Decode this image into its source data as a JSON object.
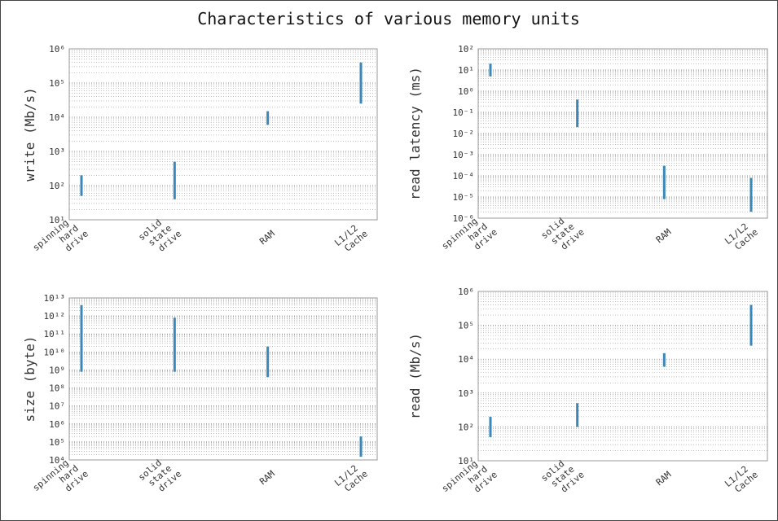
{
  "title": "Characteristics of various memory units",
  "chart_data": [
    {
      "type": "range",
      "ylabel": "write (Mb/s)",
      "log": true,
      "grid": true,
      "color": "#3a87b8",
      "categories": [
        [
          "spinning",
          "hard",
          "drive"
        ],
        [
          "solid",
          "state",
          "drive"
        ],
        [
          "RAM"
        ],
        [
          "L1/L2",
          "Cache"
        ]
      ],
      "values": [
        [
          50,
          200
        ],
        [
          40,
          500
        ],
        [
          6000,
          15000
        ],
        [
          25000,
          400000
        ]
      ],
      "ylim": [
        10,
        1000000
      ],
      "yticks": [
        {
          "value": 10,
          "label": "10¹"
        },
        {
          "value": 100,
          "label": "10²"
        },
        {
          "value": 1000,
          "label": "10³"
        },
        {
          "value": 10000,
          "label": "10⁴"
        },
        {
          "value": 100000,
          "label": "10⁵"
        },
        {
          "value": 1000000,
          "label": "10⁶"
        }
      ]
    },
    {
      "type": "range",
      "ylabel": "read latency (ms)",
      "log": true,
      "grid": true,
      "color": "#3a87b8",
      "categories": [
        [
          "spinning",
          "hard",
          "drive"
        ],
        [
          "solid",
          "state",
          "drive"
        ],
        [
          "RAM"
        ],
        [
          "L1/L2",
          "Cache"
        ]
      ],
      "values": [
        [
          5,
          20
        ],
        [
          0.02,
          0.4
        ],
        [
          8e-06,
          0.0003
        ],
        [
          2e-06,
          8e-05
        ]
      ],
      "ylim": [
        1e-06,
        100
      ],
      "yticks": [
        {
          "value": 1e-06,
          "label": "10⁻⁶"
        },
        {
          "value": 1e-05,
          "label": "10⁻⁵"
        },
        {
          "value": 0.0001,
          "label": "10⁻⁴"
        },
        {
          "value": 0.001,
          "label": "10⁻³"
        },
        {
          "value": 0.01,
          "label": "10⁻²"
        },
        {
          "value": 0.1,
          "label": "10⁻¹"
        },
        {
          "value": 1,
          "label": "10⁰"
        },
        {
          "value": 10,
          "label": "10¹"
        },
        {
          "value": 100,
          "label": "10²"
        }
      ]
    },
    {
      "type": "range",
      "ylabel": "size (byte)",
      "log": true,
      "grid": true,
      "color": "#3a87b8",
      "categories": [
        [
          "spinning",
          "hard",
          "drive"
        ],
        [
          "solid",
          "state",
          "drive"
        ],
        [
          "RAM"
        ],
        [
          "L1/L2",
          "Cache"
        ]
      ],
      "values": [
        [
          800000000,
          4000000000000
        ],
        [
          800000000,
          800000000000
        ],
        [
          400000000,
          20000000000
        ],
        [
          15000,
          200000
        ]
      ],
      "ylim": [
        10000,
        10000000000000
      ],
      "yticks": [
        {
          "value": 10000,
          "label": "10⁴"
        },
        {
          "value": 100000,
          "label": "10⁵"
        },
        {
          "value": 1000000,
          "label": "10⁶"
        },
        {
          "value": 10000000,
          "label": "10⁷"
        },
        {
          "value": 100000000,
          "label": "10⁸"
        },
        {
          "value": 1000000000,
          "label": "10⁹"
        },
        {
          "value": 10000000000,
          "label": "10¹⁰"
        },
        {
          "value": 100000000000,
          "label": "10¹¹"
        },
        {
          "value": 1000000000000,
          "label": "10¹²"
        },
        {
          "value": 10000000000000,
          "label": "10¹³"
        }
      ]
    },
    {
      "type": "range",
      "ylabel": "read (Mb/s)",
      "log": true,
      "grid": true,
      "color": "#3a87b8",
      "categories": [
        [
          "spinning",
          "hard",
          "drive"
        ],
        [
          "solid",
          "state",
          "drive"
        ],
        [
          "RAM"
        ],
        [
          "L1/L2",
          "Cache"
        ]
      ],
      "values": [
        [
          50,
          200
        ],
        [
          100,
          500
        ],
        [
          6000,
          15000
        ],
        [
          25000,
          400000
        ]
      ],
      "ylim": [
        10,
        1000000
      ],
      "yticks": [
        {
          "value": 10,
          "label": "10¹"
        },
        {
          "value": 100,
          "label": "10²"
        },
        {
          "value": 1000,
          "label": "10³"
        },
        {
          "value": 10000,
          "label": "10⁴"
        },
        {
          "value": 100000,
          "label": "10⁵"
        },
        {
          "value": 1000000,
          "label": "10⁶"
        }
      ]
    }
  ]
}
